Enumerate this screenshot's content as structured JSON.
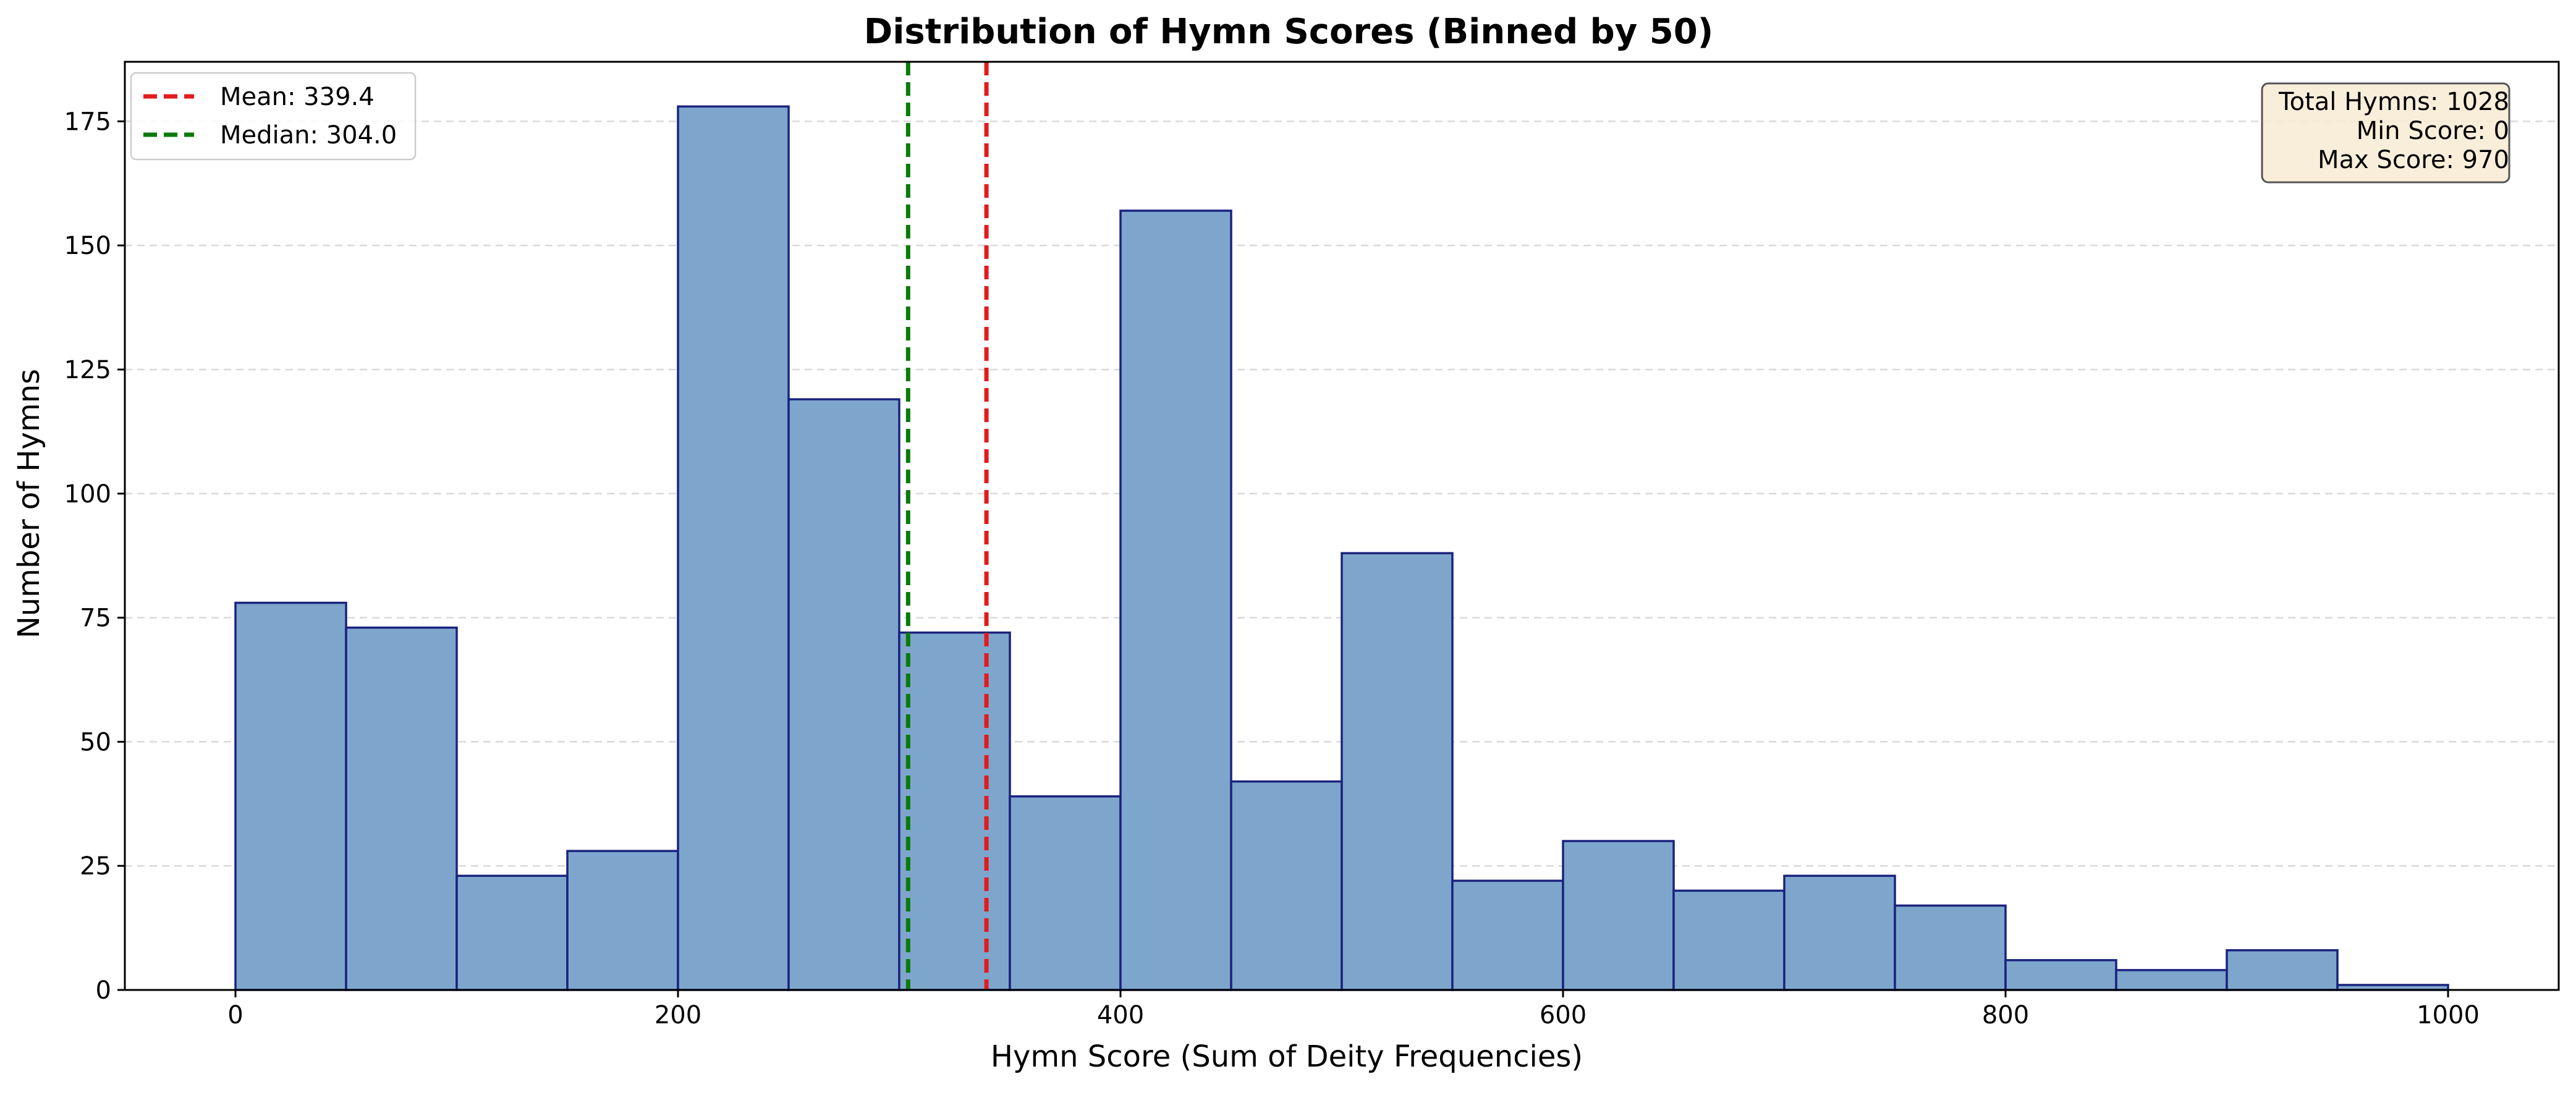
{
  "chart_data": {
    "type": "bar",
    "title": "Distribution of Hymn Scores (Binned by 50)",
    "xlabel": "Hymn Score (Sum of Deity Frequencies)",
    "ylabel": "Number of Hymns",
    "bin_width": 50,
    "bin_edges": [
      0,
      50,
      100,
      150,
      200,
      250,
      300,
      350,
      400,
      450,
      500,
      550,
      600,
      650,
      700,
      750,
      800,
      850,
      900,
      950,
      1000
    ],
    "values": [
      78,
      73,
      23,
      28,
      178,
      119,
      72,
      39,
      157,
      42,
      88,
      22,
      30,
      20,
      23,
      17,
      6,
      4,
      8,
      1
    ],
    "xlim": [
      -50,
      1050
    ],
    "ylim": [
      0,
      187
    ],
    "xticks": [
      0,
      200,
      400,
      600,
      800,
      1000
    ],
    "xtick_labels": [
      "0",
      "200",
      "400",
      "600",
      "800",
      "1000"
    ],
    "yticks": [
      0,
      25,
      50,
      75,
      100,
      125,
      150,
      175
    ],
    "ytick_labels": [
      "0",
      "25",
      "50",
      "75",
      "100",
      "125",
      "150",
      "175"
    ],
    "grid": "y-dashed",
    "bar_fill": "#7ea6cc",
    "bar_edge": "#1a237e",
    "reference_lines": [
      {
        "name": "mean",
        "label": "Mean: 339.4",
        "value": 339.4,
        "color": "#e41a1c"
      },
      {
        "name": "median",
        "label": "Median: 304.0",
        "value": 304.0,
        "color": "#0a7a0a"
      }
    ],
    "legend_position": "top-left",
    "stats_box": {
      "position": "top-right",
      "background": "#f8ebd4",
      "lines": [
        "Total Hymns: 1028",
        "Min Score: 0",
        "Max Score: 970"
      ]
    }
  }
}
